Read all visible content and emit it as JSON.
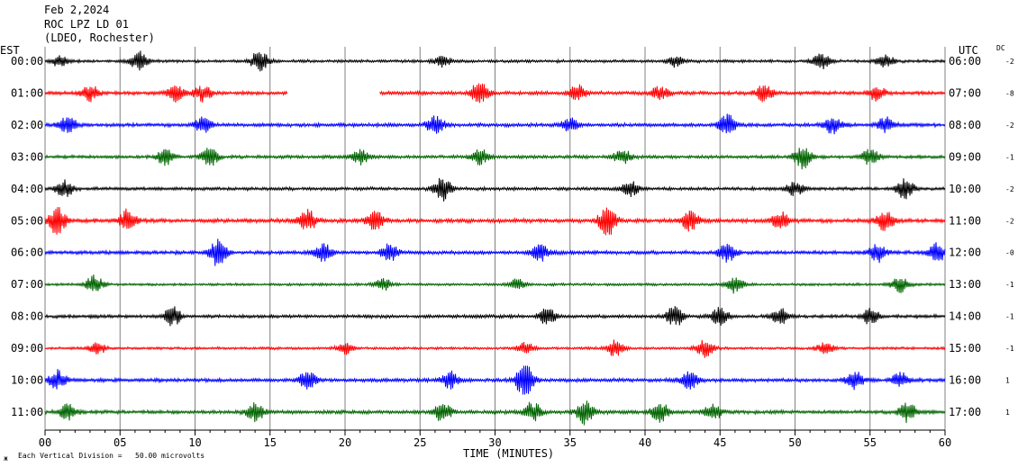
{
  "header": {
    "date": "Feb 2,2024",
    "station": "ROC LPZ LD 01",
    "network": "(LDEO, Rochester)"
  },
  "left_timezone": "EST",
  "right_timezone": "UTC",
  "dc_header": "DC",
  "xlabel": "TIME (MINUTES)",
  "footnote_prefix": "ж",
  "footnote": "Each Vertical Division =   50.00 microvolts",
  "colors": {
    "black": "#000000",
    "red": "#ff0000",
    "blue": "#0000ff",
    "green": "#006400",
    "grid": "#808080"
  },
  "chart_data": {
    "type": "line",
    "title": "ROC LPZ LD 01",
    "xlabel": "TIME (MINUTES)",
    "xlim": [
      0,
      60
    ],
    "x_ticks": [
      "00",
      "05",
      "10",
      "15",
      "20",
      "25",
      "30",
      "35",
      "40",
      "45",
      "50",
      "55",
      "60"
    ],
    "x_minor_step": 1,
    "vertical_grid_every_minutes": 5,
    "rows": [
      {
        "left": "00:00",
        "right": "06:00",
        "dc": "-2",
        "color": "black",
        "bursts": [
          [
            1,
            1.0
          ],
          [
            6.3,
            2.0
          ],
          [
            14.3,
            2.2
          ],
          [
            26.5,
            1.0
          ],
          [
            42,
            1.0
          ],
          [
            51.8,
            1.8
          ],
          [
            56,
            1.2
          ]
        ],
        "amp": 0.8,
        "gaps": []
      },
      {
        "left": "01:00",
        "right": "07:00",
        "dc": "-8",
        "color": "red",
        "bursts": [
          [
            3,
            1.2
          ],
          [
            8.7,
            1.3
          ],
          [
            10.5,
            1.3
          ],
          [
            29,
            2.0
          ],
          [
            35.5,
            1.2
          ],
          [
            41,
            1.0
          ],
          [
            48,
            1.4
          ],
          [
            55.5,
            1.2
          ]
        ],
        "amp": 1.0,
        "gaps": [
          [
            16.2,
            22.3
          ]
        ]
      },
      {
        "left": "02:00",
        "right": "08:00",
        "dc": "-2",
        "color": "blue",
        "bursts": [
          [
            1.5,
            1.4
          ],
          [
            10.5,
            1.3
          ],
          [
            26,
            1.5
          ],
          [
            35,
            1.0
          ],
          [
            45.5,
            1.6
          ],
          [
            52.5,
            1.4
          ],
          [
            56,
            1.2
          ]
        ],
        "amp": 1.0,
        "gaps": []
      },
      {
        "left": "03:00",
        "right": "09:00",
        "dc": "-1",
        "color": "green",
        "bursts": [
          [
            8,
            1.4
          ],
          [
            11,
            1.6
          ],
          [
            21,
            1.3
          ],
          [
            29,
            1.3
          ],
          [
            38.5,
            1.3
          ],
          [
            50.5,
            2.0
          ],
          [
            55,
            1.3
          ]
        ],
        "amp": 0.9,
        "gaps": []
      },
      {
        "left": "04:00",
        "right": "10:00",
        "dc": "-2",
        "color": "black",
        "bursts": [
          [
            1.3,
            1.4
          ],
          [
            26.5,
            2.2
          ],
          [
            39,
            1.4
          ],
          [
            50,
            1.3
          ],
          [
            57.3,
            2.0
          ]
        ],
        "amp": 0.9,
        "gaps": []
      },
      {
        "left": "05:00",
        "right": "11:00",
        "dc": "-2",
        "color": "red",
        "bursts": [
          [
            0.8,
            2.0
          ],
          [
            5.5,
            1.6
          ],
          [
            17.5,
            1.5
          ],
          [
            22,
            1.4
          ],
          [
            37.5,
            2.2
          ],
          [
            43,
            1.6
          ],
          [
            49,
            1.3
          ],
          [
            56,
            1.4
          ]
        ],
        "amp": 1.1,
        "gaps": []
      },
      {
        "left": "06:00",
        "right": "12:00",
        "dc": "-0",
        "color": "blue",
        "bursts": [
          [
            11.5,
            2.2
          ],
          [
            18.5,
            1.6
          ],
          [
            23,
            1.4
          ],
          [
            33,
            1.3
          ],
          [
            45.5,
            1.5
          ],
          [
            55.5,
            1.4
          ],
          [
            59.5,
            1.4
          ]
        ],
        "amp": 1.0,
        "gaps": []
      },
      {
        "left": "07:00",
        "right": "13:00",
        "dc": "-1",
        "color": "green",
        "bursts": [
          [
            3.3,
            2.0
          ],
          [
            22.5,
            1.4
          ],
          [
            31.5,
            1.3
          ],
          [
            46,
            2.0
          ],
          [
            57,
            1.8
          ]
        ],
        "amp": 0.7,
        "gaps": []
      },
      {
        "left": "08:00",
        "right": "14:00",
        "dc": "-1",
        "color": "black",
        "bursts": [
          [
            8.5,
            1.6
          ],
          [
            33.5,
            1.4
          ],
          [
            42,
            1.8
          ],
          [
            45,
            1.6
          ],
          [
            49,
            1.3
          ],
          [
            55,
            1.3
          ]
        ],
        "amp": 0.9,
        "gaps": []
      },
      {
        "left": "09:00",
        "right": "15:00",
        "dc": "-1",
        "color": "red",
        "bursts": [
          [
            3.5,
            1.3
          ],
          [
            20,
            1.3
          ],
          [
            32,
            1.4
          ],
          [
            38,
            1.8
          ],
          [
            44,
            2.2
          ],
          [
            52,
            1.3
          ]
        ],
        "amp": 0.7,
        "gaps": []
      },
      {
        "left": "10:00",
        "right": "16:00",
        "dc": "1",
        "color": "blue",
        "bursts": [
          [
            0.8,
            1.6
          ],
          [
            17.5,
            1.4
          ],
          [
            27,
            1.3
          ],
          [
            32,
            3.2
          ],
          [
            43,
            1.4
          ],
          [
            54,
            1.4
          ],
          [
            57,
            1.3
          ]
        ],
        "amp": 1.0,
        "gaps": []
      },
      {
        "left": "11:00",
        "right": "17:00",
        "dc": "1",
        "color": "green",
        "bursts": [
          [
            1.5,
            1.3
          ],
          [
            14,
            1.4
          ],
          [
            26.5,
            1.6
          ],
          [
            32.5,
            1.6
          ],
          [
            36,
            2.0
          ],
          [
            41,
            1.6
          ],
          [
            44.5,
            1.4
          ],
          [
            57.5,
            1.6
          ]
        ],
        "amp": 1.0,
        "gaps": []
      }
    ]
  }
}
